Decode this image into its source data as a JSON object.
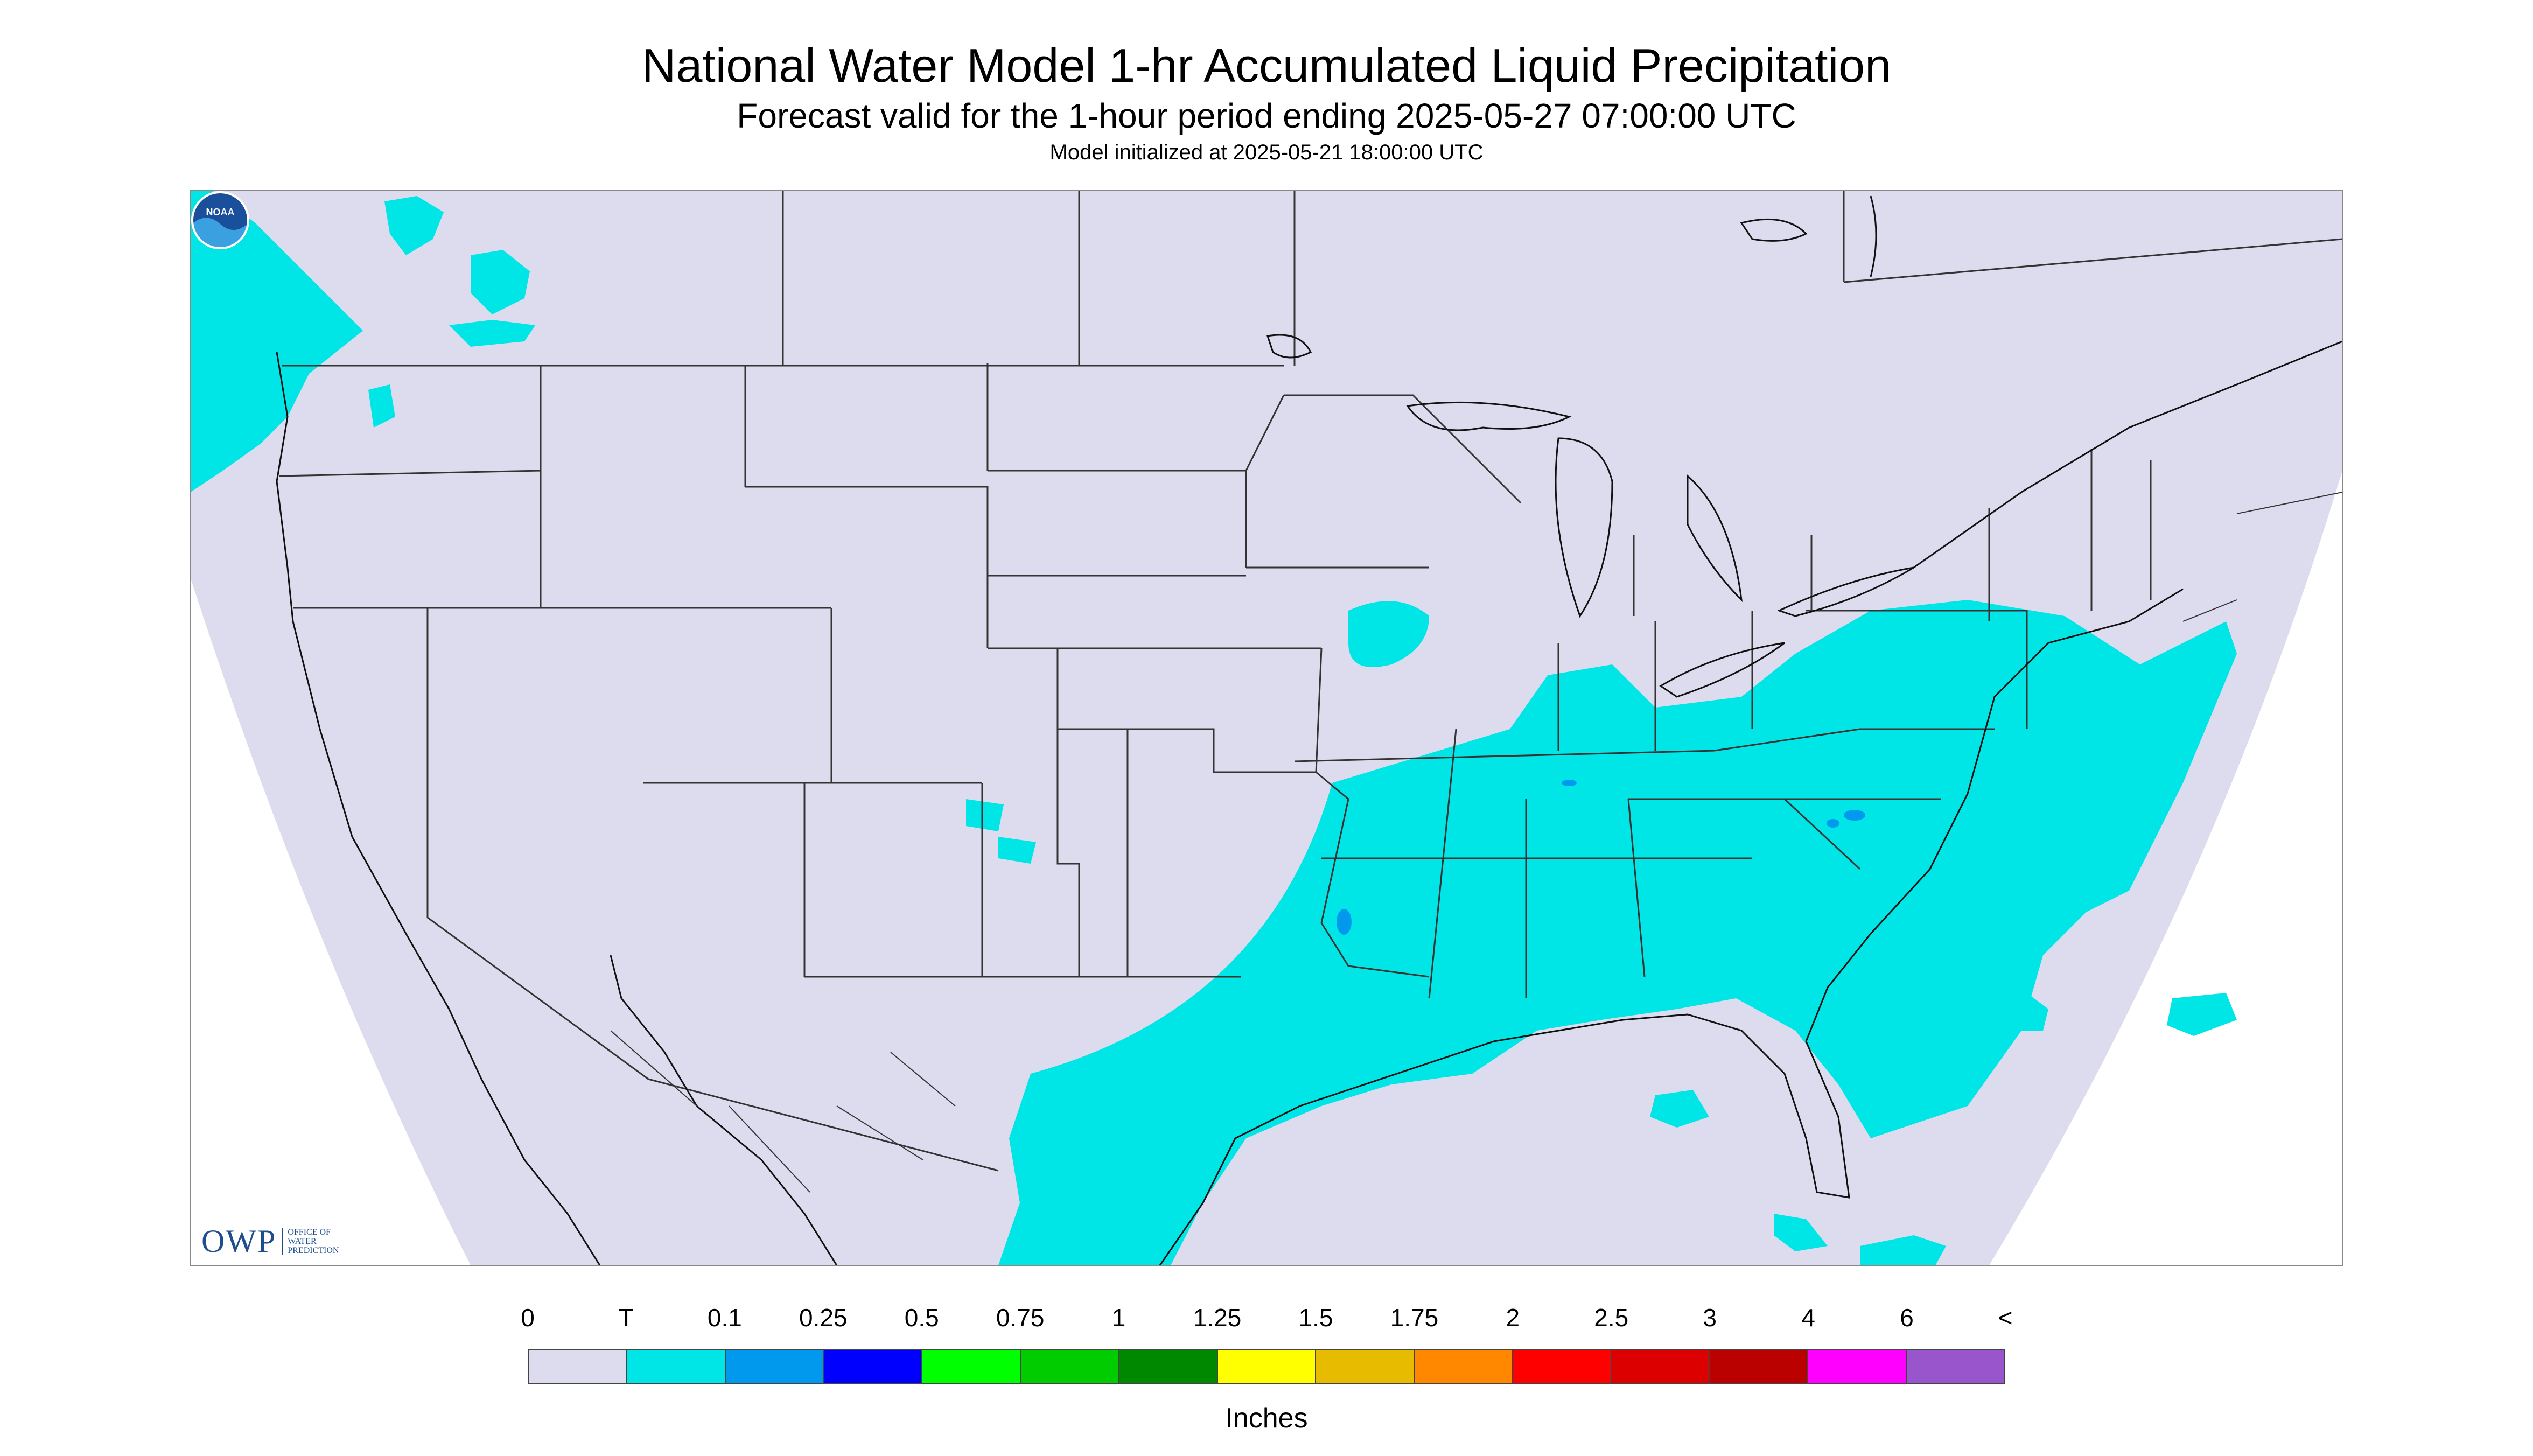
{
  "title": "National Water Model 1-hr Accumulated Liquid Precipitation",
  "subtitle": "Forecast valid for the 1-hour period ending 2025-05-27 07:00:00 UTC",
  "init_line": "Model initialized at 2025-05-21 18:00:00 UTC",
  "logos": {
    "owp_mark": "OWP",
    "owp_lines": [
      "OFFICE OF",
      "WATER",
      "PREDICTION"
    ],
    "noaa_text": "NOAA"
  },
  "colors": {
    "no_data": "#dcdcee",
    "map_background": "#dcdcee",
    "trace": "#00e5e5",
    "state_lines": "#333333",
    "coast_lines": "#111111"
  },
  "legend": {
    "labels": [
      "0",
      "T",
      "0.1",
      "0.25",
      "0.5",
      "0.75",
      "1",
      "1.25",
      "1.5",
      "1.75",
      "2",
      "2.5",
      "3",
      "4",
      "6",
      "<"
    ],
    "colors": [
      "#dcdcee",
      "#00e5e5",
      "#0099ee",
      "#0000ff",
      "#00ff00",
      "#00cc00",
      "#008800",
      "#ffff00",
      "#e6bb00",
      "#ff8800",
      "#ff0000",
      "#dd0000",
      "#bb0000",
      "#ff00ff",
      "#9955cc"
    ],
    "units": "Inches"
  }
}
